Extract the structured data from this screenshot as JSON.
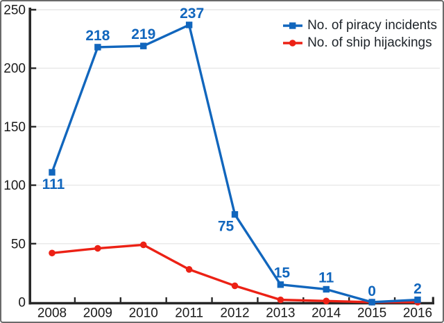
{
  "chart_data": {
    "type": "line",
    "title": "",
    "xlabel": "",
    "ylabel": "",
    "categories": [
      "2008",
      "2009",
      "2010",
      "2011",
      "2012",
      "2013",
      "2014",
      "2015",
      "2016"
    ],
    "series": [
      {
        "name": "No. of piracy incidents",
        "color": "#1166bd",
        "marker": "square",
        "values": [
          111,
          218,
          219,
          237,
          75,
          15,
          11,
          0,
          2
        ],
        "show_data_labels": true,
        "label_offsets": [
          [
            2,
            24
          ],
          [
            0,
            -10
          ],
          [
            0,
            -10
          ],
          [
            4,
            -10
          ],
          [
            -13,
            24
          ],
          [
            2,
            -10
          ],
          [
            0,
            -10
          ],
          [
            0,
            -9
          ],
          [
            0,
            -9
          ]
        ]
      },
      {
        "name": "No. of ship hijackings",
        "color": "#ec2115",
        "marker": "circle",
        "values": [
          42,
          46,
          49,
          28,
          14,
          2,
          1,
          0,
          0
        ],
        "show_data_labels": false,
        "label_offsets": []
      }
    ],
    "ylim": [
      0,
      250
    ],
    "yticks": [
      0,
      50,
      100,
      150,
      200,
      250
    ],
    "grid": true,
    "legend_position": "top-right",
    "axis_color": "#282828",
    "grid_color": "#e7e7e7",
    "tick_label_color": "#1a1a1a",
    "legend_text_color": "#1d2329"
  }
}
